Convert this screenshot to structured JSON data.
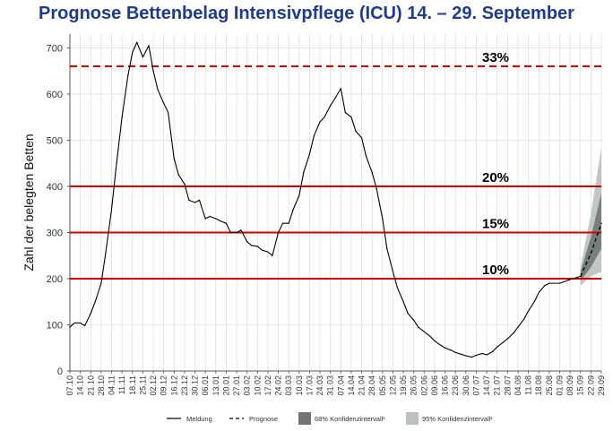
{
  "chart_data": {
    "type": "line",
    "title": "Prognose Bettenbelag Intensivpflege (ICU) 14. – 29. September",
    "ylabel": "Zahl der belegten Betten",
    "ylim": [
      0,
      730
    ],
    "yticks": [
      0,
      100,
      200,
      300,
      400,
      500,
      600,
      700
    ],
    "x_tick_labels": [
      "07.10",
      "14.10",
      "21.10",
      "28.10",
      "04.11",
      "11.11",
      "18.11",
      "25.11",
      "02.12",
      "09.12",
      "16.12",
      "23.12",
      "30.12",
      "06.01",
      "13.01",
      "20.01",
      "27.01",
      "03.02",
      "10.02",
      "17.02",
      "24.02",
      "03.03",
      "10.03",
      "17.03",
      "24.03",
      "31.03",
      "07.04",
      "14.04",
      "21.04",
      "28.04",
      "05.05",
      "12.05",
      "19.05",
      "26.05",
      "02.06",
      "09.06",
      "16.06",
      "23.06",
      "30.06",
      "07.07",
      "14.07",
      "21.07",
      "28.07",
      "04.08",
      "11.08",
      "18.08",
      "25.08",
      "01.09",
      "08.09",
      "15.09",
      "22.09",
      "29.09"
    ],
    "grid": true,
    "thresholds": [
      {
        "label": "33%",
        "value": 660,
        "style": "dashed"
      },
      {
        "label": "20%",
        "value": 400,
        "style": "solid"
      },
      {
        "label": "15%",
        "value": 300,
        "style": "solid"
      },
      {
        "label": "10%",
        "value": 200,
        "style": "solid"
      }
    ],
    "series": [
      {
        "name": "Meldung",
        "style": "solid",
        "points": [
          [
            "07.10",
            95
          ],
          [
            "10.10",
            104
          ],
          [
            "14.10",
            104
          ],
          [
            "17.10",
            98
          ],
          [
            "21.10",
            125
          ],
          [
            "24.10",
            150
          ],
          [
            "28.10",
            190
          ],
          [
            "31.10",
            255
          ],
          [
            "04.11",
            350
          ],
          [
            "07.11",
            440
          ],
          [
            "11.11",
            550
          ],
          [
            "15.11",
            640
          ],
          [
            "18.11",
            690
          ],
          [
            "21.11",
            712
          ],
          [
            "25.11",
            680
          ],
          [
            "29.11",
            705
          ],
          [
            "02.12",
            650
          ],
          [
            "05.12",
            610
          ],
          [
            "09.12",
            580
          ],
          [
            "12.12",
            560
          ],
          [
            "16.12",
            460
          ],
          [
            "19.12",
            425
          ],
          [
            "23.12",
            405
          ],
          [
            "26.12",
            370
          ],
          [
            "30.12",
            365
          ],
          [
            "02.01",
            370
          ],
          [
            "06.01",
            330
          ],
          [
            "09.01",
            335
          ],
          [
            "13.01",
            330
          ],
          [
            "16.01",
            325
          ],
          [
            "20.01",
            320
          ],
          [
            "23.01",
            300
          ],
          [
            "27.01",
            300
          ],
          [
            "30.01",
            305
          ],
          [
            "03.02",
            280
          ],
          [
            "06.02",
            272
          ],
          [
            "10.02",
            270
          ],
          [
            "13.02",
            262
          ],
          [
            "17.02",
            258
          ],
          [
            "20.02",
            250
          ],
          [
            "24.02",
            300
          ],
          [
            "27.02",
            320
          ],
          [
            "03.03",
            320
          ],
          [
            "06.03",
            350
          ],
          [
            "10.03",
            380
          ],
          [
            "13.03",
            430
          ],
          [
            "17.03",
            470
          ],
          [
            "20.03",
            510
          ],
          [
            "24.03",
            540
          ],
          [
            "27.03",
            550
          ],
          [
            "31.03",
            575
          ],
          [
            "03.04",
            590
          ],
          [
            "07.04",
            612
          ],
          [
            "10.04",
            560
          ],
          [
            "14.04",
            550
          ],
          [
            "17.04",
            520
          ],
          [
            "21.04",
            505
          ],
          [
            "24.04",
            465
          ],
          [
            "28.04",
            430
          ],
          [
            "01.05",
            395
          ],
          [
            "05.05",
            330
          ],
          [
            "08.05",
            265
          ],
          [
            "12.05",
            215
          ],
          [
            "15.05",
            180
          ],
          [
            "19.05",
            150
          ],
          [
            "22.05",
            125
          ],
          [
            "26.05",
            110
          ],
          [
            "29.05",
            95
          ],
          [
            "02.06",
            85
          ],
          [
            "06.06",
            75
          ],
          [
            "09.06",
            65
          ],
          [
            "13.06",
            56
          ],
          [
            "16.06",
            50
          ],
          [
            "20.06",
            45
          ],
          [
            "23.06",
            40
          ],
          [
            "27.06",
            36
          ],
          [
            "30.06",
            33
          ],
          [
            "04.07",
            30
          ],
          [
            "07.07",
            34
          ],
          [
            "11.07",
            38
          ],
          [
            "14.07",
            35
          ],
          [
            "18.07",
            42
          ],
          [
            "21.07",
            52
          ],
          [
            "25.07",
            62
          ],
          [
            "28.07",
            70
          ],
          [
            "01.08",
            82
          ],
          [
            "04.08",
            95
          ],
          [
            "08.08",
            112
          ],
          [
            "11.08",
            130
          ],
          [
            "15.08",
            150
          ],
          [
            "18.08",
            170
          ],
          [
            "22.08",
            185
          ],
          [
            "25.08",
            190
          ],
          [
            "01.09",
            190
          ],
          [
            "08.09",
            198
          ],
          [
            "15.09",
            205
          ]
        ]
      },
      {
        "name": "Prognose",
        "style": "dashed",
        "points": [
          [
            "15.09",
            205
          ],
          [
            "22.09",
            255
          ],
          [
            "29.09",
            320
          ]
        ]
      }
    ],
    "confidence_bands": [
      {
        "name": "68% Konfidenzintervall¹",
        "color": "#6e7772",
        "x": [
          "15.09",
          "22.09",
          "29.09"
        ],
        "lower": [
          195,
          225,
          265
        ],
        "upper": [
          215,
          290,
          385
        ]
      },
      {
        "name": "95% Konfidenzintervall¹",
        "color": "#bcc1bd",
        "x": [
          "15.09",
          "22.09",
          "29.09"
        ],
        "lower": [
          185,
          205,
          215
        ],
        "upper": [
          225,
          340,
          485
        ]
      }
    ],
    "legend_position": "bottom"
  },
  "colors": {
    "title": "#1f3b8c",
    "threshold_line": "#d40000",
    "meldung_line": "#000000",
    "band68": "#6e7772",
    "band95": "#bcc1bd",
    "grid": "#d9d9d9"
  }
}
